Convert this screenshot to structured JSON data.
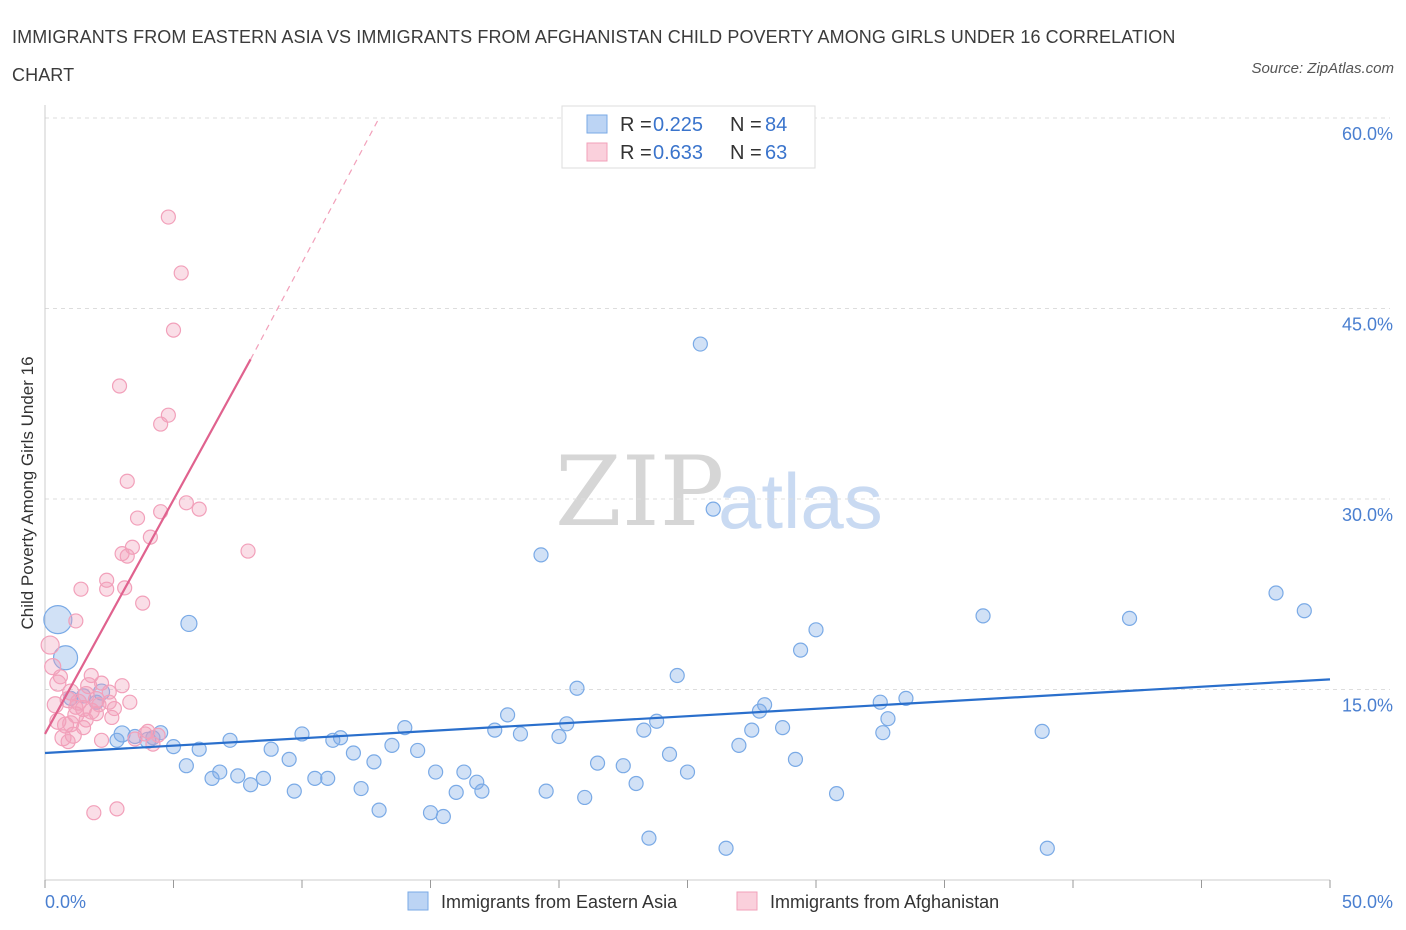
{
  "chart_data": {
    "type": "scatter",
    "title": "IMMIGRANTS FROM EASTERN ASIA VS IMMIGRANTS FROM AFGHANISTAN CHILD POVERTY AMONG GIRLS UNDER 16 CORRELATION CHART",
    "source": "Source: ZipAtlas.com",
    "ylabel": "Child Poverty Among Girls Under 16",
    "xlim": [
      0,
      50
    ],
    "ylim": [
      0,
      60
    ],
    "x_tick_labels": [
      "0.0%",
      "50.0%"
    ],
    "y_tick_labels": [
      "15.0%",
      "30.0%",
      "45.0%",
      "60.0%"
    ],
    "y_ticks": [
      15,
      30,
      45,
      60
    ],
    "watermark": {
      "zip": "ZIP",
      "atlas": "atlas"
    },
    "legend": [
      {
        "series": "Immigrants from Eastern Asia",
        "r_label": "R =",
        "r": "0.225",
        "n_label": "N =",
        "n": "84"
      },
      {
        "series": "Immigrants from Afghanistan",
        "r_label": "R =",
        "r": "0.633",
        "n_label": "N =",
        "n": "63"
      }
    ],
    "series": [
      {
        "name": "Immigrants from Eastern Asia",
        "color": "#7aaae6",
        "line_color": "#2a6fcc",
        "trend": {
          "x0": 0,
          "y0": 10.0,
          "x1": 50,
          "y1": 15.8
        },
        "points": [
          [
            0.5,
            20.5,
            14
          ],
          [
            0.8,
            17.5,
            12
          ],
          [
            2.2,
            14.8,
            8
          ],
          [
            3.0,
            11.5,
            8
          ],
          [
            4.0,
            11.0,
            8
          ],
          [
            4.2,
            11.2,
            7
          ],
          [
            5.0,
            10.5,
            7
          ],
          [
            5.5,
            9.0,
            7
          ],
          [
            5.6,
            20.2,
            8
          ],
          [
            6.0,
            10.3,
            7
          ],
          [
            6.5,
            8.0,
            7
          ],
          [
            6.8,
            8.5,
            7
          ],
          [
            7.2,
            11.0,
            7
          ],
          [
            7.5,
            8.2,
            7
          ],
          [
            8.0,
            7.5,
            7
          ],
          [
            8.5,
            8.0,
            7
          ],
          [
            8.8,
            10.3,
            7
          ],
          [
            9.5,
            9.5,
            7
          ],
          [
            9.7,
            7.0,
            7
          ],
          [
            10.0,
            11.5,
            7
          ],
          [
            10.5,
            8.0,
            7
          ],
          [
            11.0,
            8.0,
            7
          ],
          [
            11.2,
            11.0,
            7
          ],
          [
            11.5,
            11.2,
            7
          ],
          [
            12.0,
            10.0,
            7
          ],
          [
            12.3,
            7.2,
            7
          ],
          [
            12.8,
            9.3,
            7
          ],
          [
            13.0,
            5.5,
            7
          ],
          [
            13.5,
            10.6,
            7
          ],
          [
            14.0,
            12.0,
            7
          ],
          [
            14.5,
            10.2,
            7
          ],
          [
            15.0,
            5.3,
            7
          ],
          [
            15.2,
            8.5,
            7
          ],
          [
            15.5,
            5.0,
            7
          ],
          [
            16.0,
            6.9,
            7
          ],
          [
            16.3,
            8.5,
            7
          ],
          [
            16.8,
            7.7,
            7
          ],
          [
            17.0,
            7.0,
            7
          ],
          [
            17.5,
            11.8,
            7
          ],
          [
            18.0,
            13.0,
            7
          ],
          [
            18.5,
            11.5,
            7
          ],
          [
            19.3,
            25.6,
            7
          ],
          [
            19.5,
            7.0,
            7
          ],
          [
            20.0,
            11.3,
            7
          ],
          [
            20.3,
            12.3,
            7
          ],
          [
            20.7,
            15.1,
            7
          ],
          [
            21.0,
            6.5,
            7
          ],
          [
            21.5,
            9.2,
            7
          ],
          [
            22.5,
            9.0,
            7
          ],
          [
            23.0,
            7.6,
            7
          ],
          [
            23.3,
            11.8,
            7
          ],
          [
            23.5,
            3.3,
            7
          ],
          [
            23.8,
            12.5,
            7
          ],
          [
            24.3,
            9.9,
            7
          ],
          [
            24.6,
            16.1,
            7
          ],
          [
            25.0,
            8.5,
            7
          ],
          [
            25.5,
            42.2,
            7
          ],
          [
            26.0,
            29.2,
            7
          ],
          [
            26.5,
            2.5,
            7
          ],
          [
            27.0,
            10.6,
            7
          ],
          [
            27.5,
            11.8,
            7
          ],
          [
            27.8,
            13.3,
            7
          ],
          [
            28.0,
            13.8,
            7
          ],
          [
            28.7,
            12.0,
            7
          ],
          [
            29.2,
            9.5,
            7
          ],
          [
            29.4,
            18.1,
            7
          ],
          [
            30.0,
            19.7,
            7
          ],
          [
            30.8,
            6.8,
            7
          ],
          [
            32.5,
            14.0,
            7
          ],
          [
            32.6,
            11.6,
            7
          ],
          [
            32.8,
            12.7,
            7
          ],
          [
            33.5,
            14.3,
            7
          ],
          [
            36.5,
            20.8,
            7
          ],
          [
            38.8,
            11.7,
            7
          ],
          [
            39.0,
            2.5,
            7
          ],
          [
            42.2,
            20.6,
            7
          ],
          [
            47.9,
            22.6,
            7
          ],
          [
            49.0,
            21.2,
            7
          ],
          [
            1.5,
            14.5,
            7
          ],
          [
            2.0,
            14.0,
            7
          ],
          [
            1.0,
            14.3,
            7
          ],
          [
            3.5,
            11.3,
            7
          ],
          [
            4.5,
            11.6,
            7
          ],
          [
            2.8,
            11.0,
            7
          ]
        ]
      },
      {
        "name": "Immigrants from Afghanistan",
        "color": "#f2a0ba",
        "line_color": "#e0628e",
        "trend": {
          "x0": 0,
          "y0": 11.5,
          "x1": 8.0,
          "y1": 41.0
        },
        "trend_dashed": {
          "x0": 8.0,
          "y0": 41.0,
          "x1": 13.0,
          "y1": 60.0
        },
        "points": [
          [
            0.2,
            18.5,
            9
          ],
          [
            0.3,
            16.8,
            8
          ],
          [
            0.4,
            13.8,
            8
          ],
          [
            0.5,
            15.5,
            8
          ],
          [
            0.5,
            12.5,
            8
          ],
          [
            0.6,
            16.0,
            7
          ],
          [
            0.7,
            11.2,
            8
          ],
          [
            0.8,
            12.2,
            8
          ],
          [
            0.9,
            14.2,
            8
          ],
          [
            1.0,
            14.8,
            8
          ],
          [
            1.0,
            12.3,
            8
          ],
          [
            1.1,
            11.4,
            8
          ],
          [
            1.2,
            13.0,
            8
          ],
          [
            1.2,
            20.4,
            7
          ],
          [
            1.3,
            14.0,
            8
          ],
          [
            1.4,
            22.9,
            7
          ],
          [
            1.5,
            13.5,
            8
          ],
          [
            1.5,
            12.0,
            7
          ],
          [
            1.6,
            14.6,
            8
          ],
          [
            1.7,
            15.3,
            8
          ],
          [
            1.8,
            13.3,
            8
          ],
          [
            1.8,
            16.1,
            7
          ],
          [
            1.9,
            5.3,
            7
          ],
          [
            2.0,
            13.1,
            7
          ],
          [
            2.0,
            14.2,
            8
          ],
          [
            2.2,
            15.5,
            7
          ],
          [
            2.2,
            11.0,
            7
          ],
          [
            2.4,
            23.6,
            7
          ],
          [
            2.4,
            22.9,
            7
          ],
          [
            2.5,
            14.8,
            7
          ],
          [
            2.5,
            14.0,
            7
          ],
          [
            2.6,
            12.8,
            7
          ],
          [
            2.7,
            13.5,
            7
          ],
          [
            2.8,
            5.6,
            7
          ],
          [
            2.9,
            38.9,
            7
          ],
          [
            3.0,
            25.7,
            7
          ],
          [
            3.0,
            15.3,
            7
          ],
          [
            3.1,
            23.0,
            7
          ],
          [
            3.2,
            25.5,
            7
          ],
          [
            3.2,
            31.4,
            7
          ],
          [
            3.3,
            14.0,
            7
          ],
          [
            3.4,
            26.2,
            7
          ],
          [
            3.5,
            11.1,
            7
          ],
          [
            3.6,
            28.5,
            7
          ],
          [
            3.8,
            21.8,
            7
          ],
          [
            3.9,
            11.5,
            7
          ],
          [
            4.0,
            11.7,
            7
          ],
          [
            4.1,
            27.0,
            7
          ],
          [
            4.2,
            10.7,
            7
          ],
          [
            4.4,
            11.4,
            7
          ],
          [
            4.5,
            29.0,
            7
          ],
          [
            4.5,
            35.9,
            7
          ],
          [
            4.8,
            36.6,
            7
          ],
          [
            4.8,
            52.2,
            7
          ],
          [
            5.0,
            43.3,
            7
          ],
          [
            5.3,
            47.8,
            7
          ],
          [
            5.5,
            29.7,
            7
          ],
          [
            6.0,
            29.2,
            7
          ],
          [
            7.9,
            25.9,
            7
          ],
          [
            1.2,
            13.6,
            7
          ],
          [
            0.9,
            10.9,
            7
          ],
          [
            2.1,
            13.8,
            7
          ],
          [
            1.6,
            12.6,
            7
          ]
        ]
      }
    ]
  }
}
